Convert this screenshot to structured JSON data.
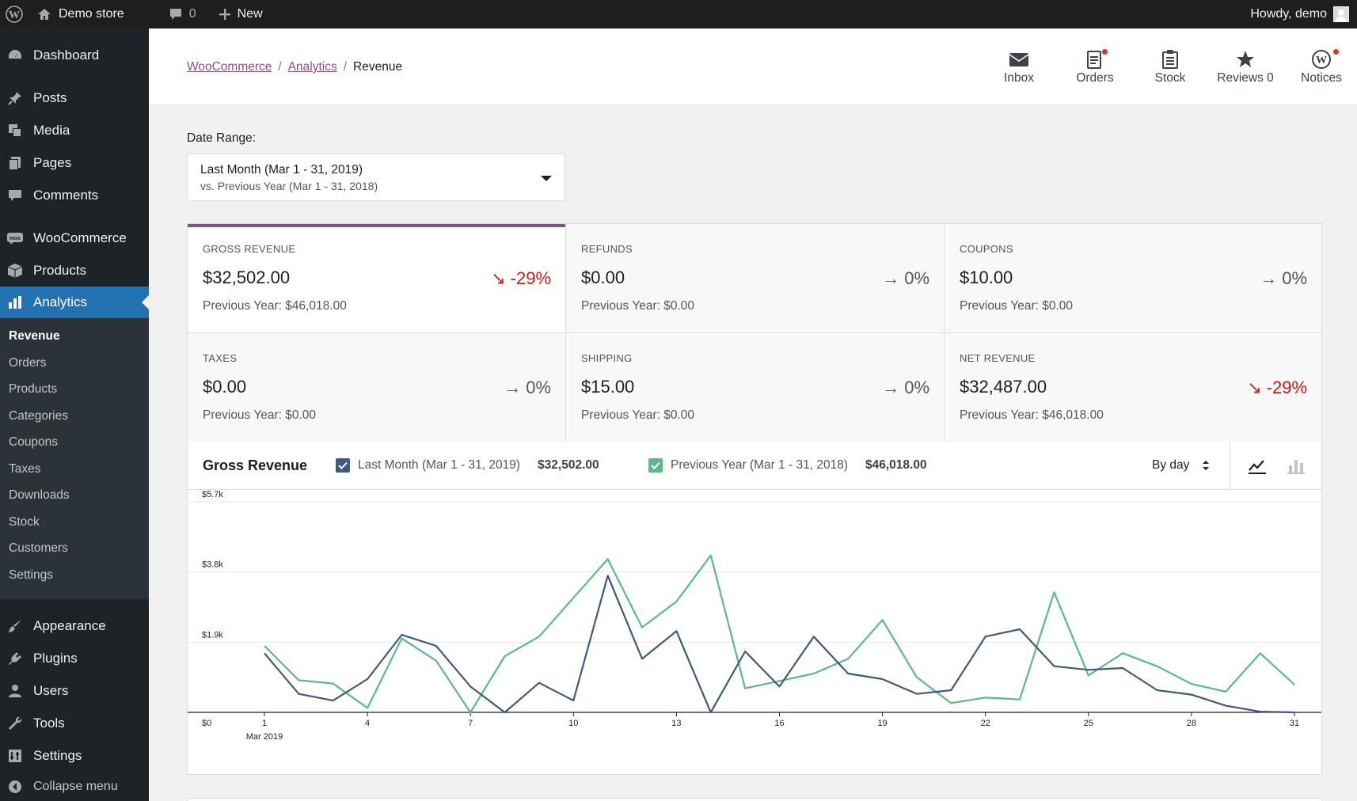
{
  "adminbar": {
    "site": "Demo store",
    "comments_count": "0",
    "new_label": "New",
    "howdy": "Howdy, demo"
  },
  "sidebar": {
    "items": [
      {
        "label": "Dashboard",
        "icon": "dashboard-icon"
      },
      {
        "label": "Posts",
        "icon": "pin-icon"
      },
      {
        "label": "Media",
        "icon": "media-icon"
      },
      {
        "label": "Pages",
        "icon": "pages-icon"
      },
      {
        "label": "Comments",
        "icon": "comment-icon"
      },
      {
        "label": "WooCommerce",
        "icon": "woo-icon"
      },
      {
        "label": "Products",
        "icon": "box-icon"
      },
      {
        "label": "Analytics",
        "icon": "bar-chart-icon"
      },
      {
        "label": "Appearance",
        "icon": "brush-icon"
      },
      {
        "label": "Plugins",
        "icon": "plug-icon"
      },
      {
        "label": "Users",
        "icon": "user-icon"
      },
      {
        "label": "Tools",
        "icon": "wrench-icon"
      },
      {
        "label": "Settings",
        "icon": "settings-icon"
      }
    ],
    "submenu": [
      "Revenue",
      "Orders",
      "Products",
      "Categories",
      "Coupons",
      "Taxes",
      "Downloads",
      "Stock",
      "Customers",
      "Settings"
    ],
    "collapse": "Collapse menu"
  },
  "header": {
    "breadcrumb": [
      "WooCommerce",
      "Analytics",
      "Revenue"
    ],
    "buttons": [
      {
        "label": "Inbox",
        "icon": "inbox-icon"
      },
      {
        "label": "Orders",
        "icon": "orders-icon"
      },
      {
        "label": "Stock",
        "icon": "stock-icon"
      },
      {
        "label": "Reviews 0",
        "icon": "star-icon"
      },
      {
        "label": "Notices",
        "icon": "wordpress-icon"
      }
    ]
  },
  "date_range": {
    "label": "Date Range:",
    "primary": "Last Month (Mar 1 - 31, 2019)",
    "secondary": "vs. Previous Year (Mar 1 - 31, 2018)"
  },
  "tiles": [
    {
      "label": "GROSS REVENUE",
      "value": "$32,502.00",
      "delta": "-29%",
      "prev": "Previous Year: $46,018.00"
    },
    {
      "label": "REFUNDS",
      "value": "$0.00",
      "delta": "0%",
      "prev": "Previous Year: $0.00"
    },
    {
      "label": "COUPONS",
      "value": "$10.00",
      "delta": "0%",
      "prev": "Previous Year: $0.00"
    },
    {
      "label": "TAXES",
      "value": "$0.00",
      "delta": "0%",
      "prev": "Previous Year: $0.00"
    },
    {
      "label": "SHIPPING",
      "value": "$15.00",
      "delta": "0%",
      "prev": "Previous Year: $0.00"
    },
    {
      "label": "NET REVENUE",
      "value": "$32,487.00",
      "delta": "-29%",
      "prev": "Previous Year: $46,018.00"
    }
  ],
  "chart": {
    "title": "Gross Revenue",
    "legend": [
      {
        "label": "Last Month (Mar 1 - 31, 2019)",
        "total": "$32,502.00",
        "color": "#3f5a7a"
      },
      {
        "label": "Previous Year (Mar 1 - 31, 2018)",
        "total": "$46,018.00",
        "color": "#5cb88a"
      }
    ],
    "interval": "By day"
  },
  "chart_data": {
    "type": "line",
    "x": [
      1,
      2,
      3,
      4,
      5,
      6,
      7,
      8,
      9,
      10,
      11,
      12,
      13,
      14,
      15,
      16,
      17,
      18,
      19,
      20,
      21,
      22,
      23,
      24,
      25,
      26,
      27,
      28,
      29,
      30,
      31
    ],
    "x_ticks": [
      "1",
      "4",
      "7",
      "10",
      "13",
      "16",
      "19",
      "22",
      "25",
      "28",
      "31"
    ],
    "x_sub_label": "Mar 2019",
    "y_ticks": [
      "$0",
      "$1.9k",
      "$3.8k",
      "$5.7k"
    ],
    "ylim": [
      0,
      5700
    ],
    "grid": true,
    "series": [
      {
        "name": "Last Month (Mar 1 - 31, 2019)",
        "color": "#3f5a7a",
        "values": [
          1600,
          500,
          320,
          900,
          2100,
          1800,
          700,
          0,
          800,
          320,
          3700,
          1450,
          2200,
          0,
          1650,
          700,
          2050,
          1050,
          900,
          500,
          600,
          2050,
          2250,
          1250,
          1150,
          1200,
          600,
          480,
          180,
          20,
          0
        ]
      },
      {
        "name": "Previous Year (Mar 1 - 31, 2018)",
        "color": "#5cb88a",
        "values": [
          1800,
          870,
          780,
          120,
          2000,
          1400,
          0,
          1520,
          2050,
          3100,
          4150,
          2300,
          3000,
          4250,
          650,
          850,
          1050,
          1450,
          2500,
          950,
          250,
          400,
          350,
          3250,
          1000,
          1600,
          1250,
          770,
          560,
          1600,
          750
        ]
      }
    ]
  }
}
